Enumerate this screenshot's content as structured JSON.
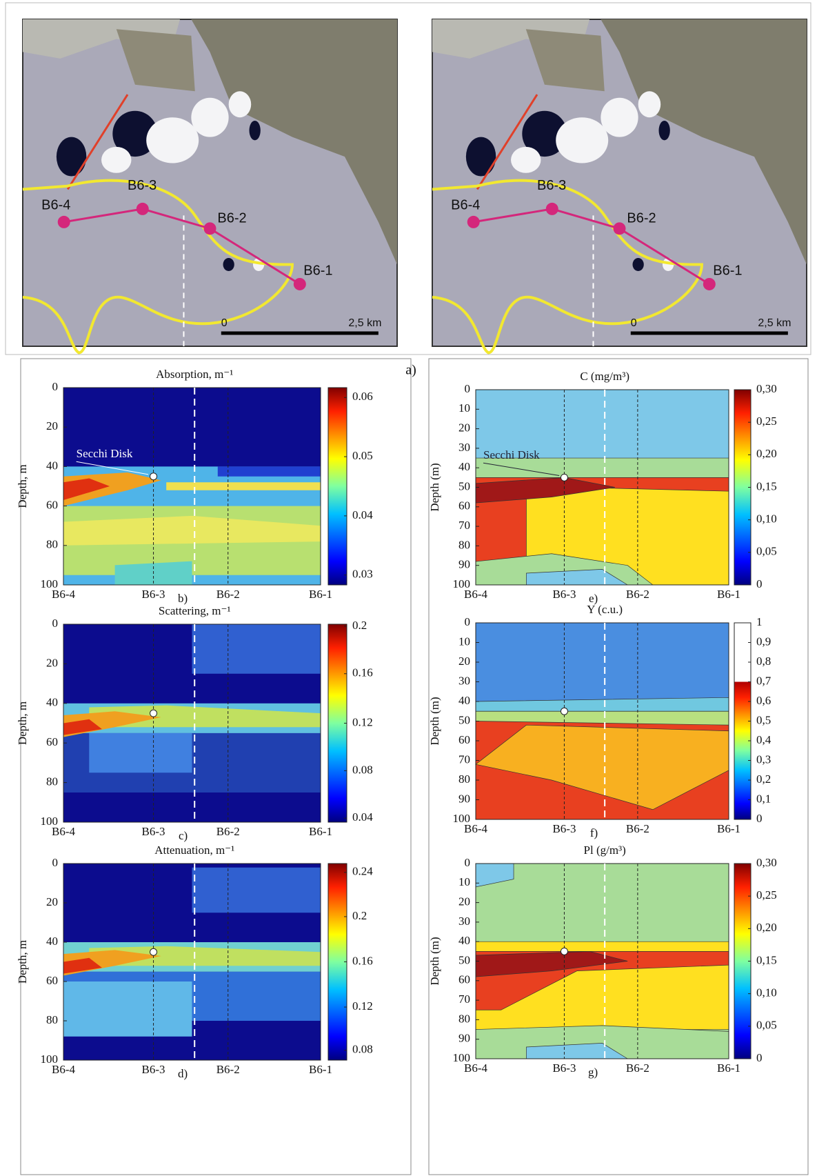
{
  "maps": [
    {
      "stations": [
        "B6-4",
        "B6-3",
        "B6-2",
        "B6-1"
      ],
      "scale": [
        "0",
        "2,5 km"
      ]
    },
    {
      "stations": [
        "B6-4",
        "B6-3",
        "B6-2",
        "B6-1"
      ],
      "scale": [
        "0",
        "2,5 km"
      ]
    }
  ],
  "map_panel_label": "a)",
  "profiles": [
    {
      "title": "Absorption, m⁻¹",
      "y_label": "Depth, m",
      "y_ticks": [
        0,
        20,
        40,
        60,
        80,
        100
      ],
      "x_ticks": [
        "B6-4",
        "B6-3",
        "B6-2",
        "B6-1"
      ],
      "colorbar_ticks": [
        "0.06",
        "0.05",
        "0.04",
        "0.03"
      ],
      "panel_label": "b)",
      "annotation": "Secchi Disk"
    },
    {
      "title": "Scattering, m⁻¹",
      "y_label": "Depth, m",
      "y_ticks": [
        0,
        20,
        40,
        60,
        80,
        100
      ],
      "x_ticks": [
        "B6-4",
        "B6-3",
        "B6-2",
        "B6-1"
      ],
      "colorbar_ticks": [
        "0.2",
        "0.16",
        "0.12",
        "0.08",
        "0.04"
      ],
      "panel_label": "c)"
    },
    {
      "title": "Attenuation, m⁻¹",
      "y_label": "Depth, m",
      "y_ticks": [
        0,
        20,
        40,
        60,
        80,
        100
      ],
      "x_ticks": [
        "B6-4",
        "B6-3",
        "B6-2",
        "B6-1"
      ],
      "colorbar_ticks": [
        "0.24",
        "0.2",
        "0.16",
        "0.12",
        "0.08"
      ],
      "panel_label": "d)"
    },
    {
      "title": "C (mg/m³)",
      "y_label": "Depth (m)",
      "y_ticks": [
        0,
        10,
        20,
        30,
        40,
        50,
        60,
        70,
        80,
        90,
        100
      ],
      "x_ticks": [
        "B6-4",
        "B6-3",
        "B6-2",
        "B6-1"
      ],
      "colorbar_ticks": [
        "0,30",
        "0,25",
        "0,20",
        "0,15",
        "0,10",
        "0,05",
        "0"
      ],
      "panel_label": "e)",
      "annotation": "Secchi Disk"
    },
    {
      "title": "Y (c.u.)",
      "y_label": "Depth (m)",
      "y_ticks": [
        0,
        10,
        20,
        30,
        40,
        50,
        60,
        70,
        80,
        90,
        100
      ],
      "x_ticks": [
        "B6-4",
        "B6-3",
        "B6-2",
        "B6-1"
      ],
      "colorbar_ticks": [
        "1",
        "0,9",
        "0,8",
        "0,7",
        "0,6",
        "0,5",
        "0,4",
        "0,3",
        "0,2",
        "0,1",
        "0"
      ],
      "panel_label": "f)"
    },
    {
      "title": "Pl (g/m³)",
      "y_label": "Depth (m)",
      "y_ticks": [
        0,
        10,
        20,
        30,
        40,
        50,
        60,
        70,
        80,
        90,
        100
      ],
      "x_ticks": [
        "B6-4",
        "B6-3",
        "B6-2",
        "B6-1"
      ],
      "colorbar_ticks": [
        "0,30",
        "0,25",
        "0,20",
        "0,15",
        "0,10",
        "0,05",
        "0"
      ],
      "panel_label": "g)"
    }
  ]
}
